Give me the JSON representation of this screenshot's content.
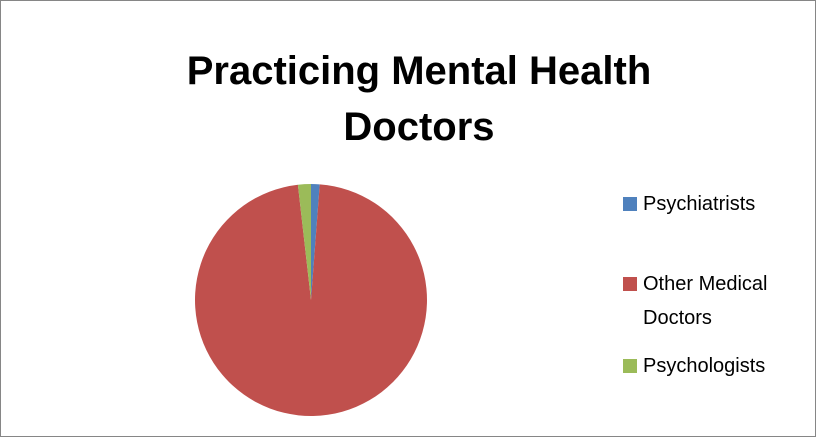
{
  "chart_data": {
    "type": "pie",
    "title": "Practicing Mental Health Doctors",
    "categories": [
      "Psychiatrists",
      "Other Medical Doctors",
      "Psychologists"
    ],
    "values": [
      1.2,
      97,
      1.8
    ],
    "colors": [
      "#4f81bd",
      "#c0504d",
      "#9bbb59"
    ],
    "legend": "right"
  }
}
